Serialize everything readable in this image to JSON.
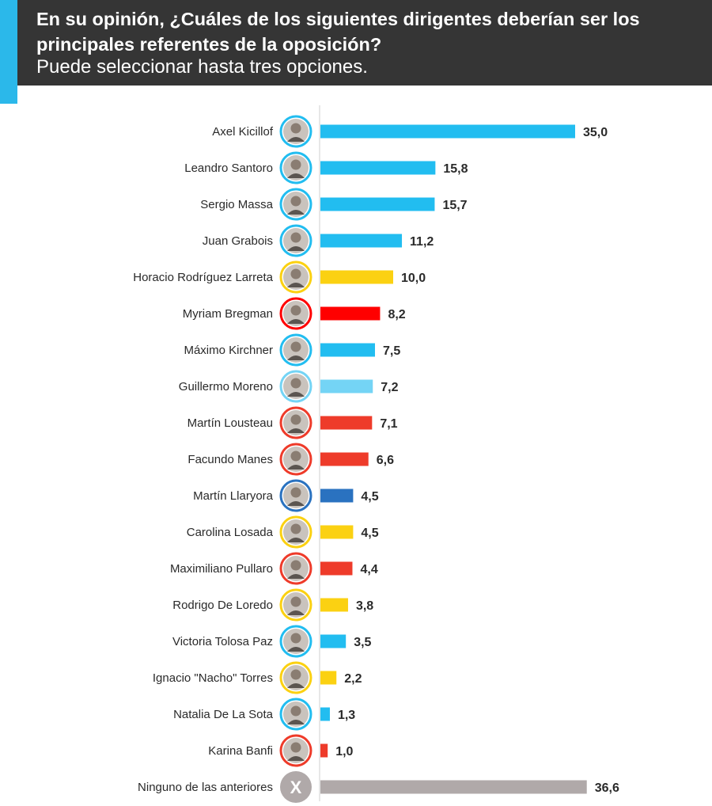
{
  "header": {
    "title": "En su opinión, ¿Cuáles de los siguientes dirigentes deberían ser los principales referentes de la oposición?",
    "subtitle": "Puede seleccionar hasta tres opciones."
  },
  "colors": {
    "header_bg": "#353535",
    "accent": "#2bb8ea",
    "axis": "#cfcfcf"
  },
  "chart_data": {
    "type": "bar",
    "orientation": "horizontal",
    "title": "En su opinión, ¿Cuáles de los siguientes dirigentes deberían ser los principales referentes de la oposición?",
    "subtitle": "Puede seleccionar hasta tres opciones.",
    "xlabel": "",
    "ylabel": "",
    "xlim": [
      0,
      40
    ],
    "grid": false,
    "legend": "none",
    "categories": [
      "Axel Kicillof",
      "Leandro Santoro",
      "Sergio Massa",
      "Juan Grabois",
      "Horacio Rodríguez Larreta",
      "Myriam Bregman",
      "Máximo Kirchner",
      "Guillermo Moreno",
      "Martín Lousteau",
      "Facundo Manes",
      "Martín Llaryora",
      "Carolina Losada",
      "Maximiliano Pullaro",
      "Rodrigo De Loredo",
      "Victoria Tolosa Paz",
      "Ignacio \"Nacho\" Torres",
      "Natalia De La Sota",
      "Karina Banfi",
      "Ninguno de las anteriores"
    ],
    "values": [
      35.0,
      15.8,
      15.7,
      11.2,
      10.0,
      8.2,
      7.5,
      7.2,
      7.1,
      6.6,
      4.5,
      4.5,
      4.4,
      3.8,
      3.5,
      2.2,
      1.3,
      1.0,
      36.6
    ],
    "value_labels": [
      "35,0",
      "15,8",
      "15,7",
      "11,2",
      "10,0",
      "8,2",
      "7,5",
      "7,2",
      "7,1",
      "6,6",
      "4,5",
      "4,5",
      "4,4",
      "3,8",
      "3,5",
      "2,2",
      "1,3",
      "1,0",
      "36,6"
    ],
    "bar_colors": [
      "#22bdf0",
      "#22bdf0",
      "#22bdf0",
      "#22bdf0",
      "#fbd112",
      "#ff0000",
      "#22bdf0",
      "#74d4f5",
      "#ee3b2a",
      "#ee3b2a",
      "#2a72c0",
      "#fbd112",
      "#ee3b2a",
      "#fbd112",
      "#22bdf0",
      "#fbd112",
      "#22bdf0",
      "#ee3b2a",
      "#b0a9a9"
    ],
    "avatar_icons": [
      "person-avatar-icon",
      "person-avatar-icon",
      "person-avatar-icon",
      "person-avatar-icon",
      "person-avatar-icon",
      "person-avatar-icon",
      "person-avatar-icon",
      "person-avatar-icon",
      "person-avatar-icon",
      "person-avatar-icon",
      "person-avatar-icon",
      "person-avatar-icon",
      "person-avatar-icon",
      "person-avatar-icon",
      "person-avatar-icon",
      "person-avatar-icon",
      "person-avatar-icon",
      "person-avatar-icon",
      "x-circle-icon"
    ],
    "none_mark": "X"
  }
}
